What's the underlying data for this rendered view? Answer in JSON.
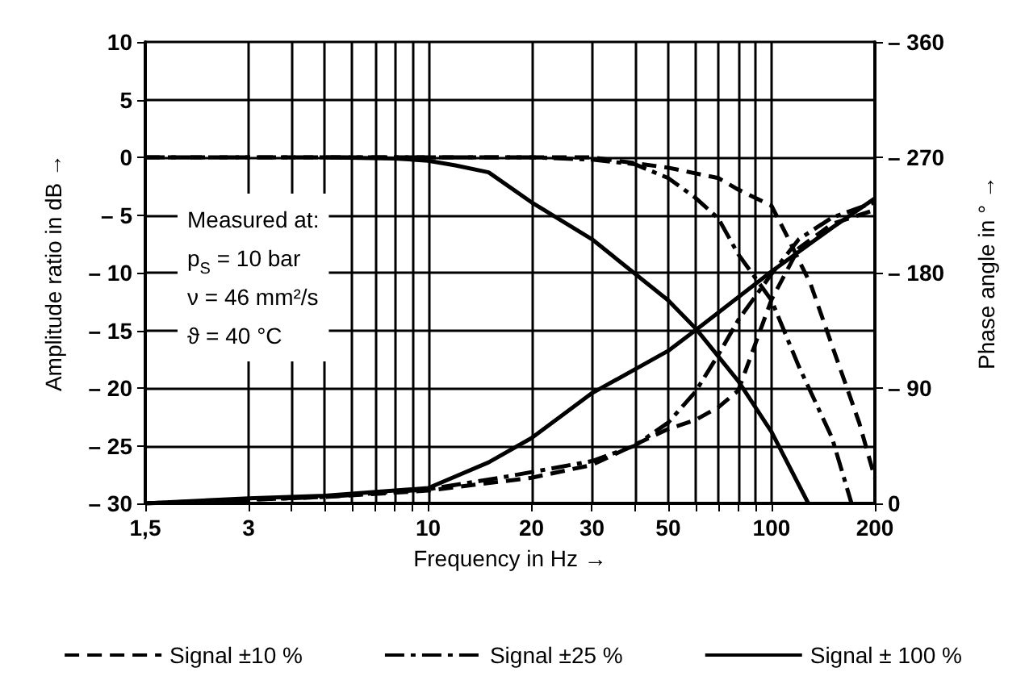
{
  "chart_data": {
    "type": "line",
    "xlabel": "Frequency in Hz →",
    "ylabel": "Amplitude ratio in dB →",
    "y2label": "Phase angle in ° →",
    "log": "x",
    "xlim": [
      1.5,
      200
    ],
    "xticks": [
      {
        "value": 1.5,
        "label": "1,5"
      },
      3,
      {
        "value": 4,
        "label": null
      },
      {
        "value": 5,
        "label": null
      },
      {
        "value": 6,
        "label": null
      },
      {
        "value": 7,
        "label": null
      },
      {
        "value": 8,
        "label": null
      },
      {
        "value": 9,
        "label": null
      },
      10,
      20,
      30,
      {
        "value": 40,
        "label": null
      },
      50,
      {
        "value": 60,
        "label": null
      },
      {
        "value": 70,
        "label": null
      },
      {
        "value": 80,
        "label": null
      },
      {
        "value": 90,
        "label": null
      },
      100,
      200
    ],
    "ylim": [
      -30,
      10
    ],
    "yticks": [
      {
        "value": -30,
        "label": "– 30"
      },
      {
        "value": -25,
        "label": "– 25"
      },
      {
        "value": -20,
        "label": "– 20"
      },
      {
        "value": -15,
        "label": "– 15"
      },
      {
        "value": -10,
        "label": "– 10"
      },
      {
        "value": -5,
        "label": "– 5"
      },
      0,
      5,
      10
    ],
    "y2lim": [
      0,
      -360
    ],
    "y2ticks": [
      0,
      {
        "value": -90,
        "label": "– 90"
      },
      {
        "value": -180,
        "label": "– 180"
      },
      {
        "value": -270,
        "label": "– 270"
      },
      {
        "value": -360,
        "label": "– 360"
      }
    ],
    "grid": true,
    "legend": "bottom",
    "marker": "none",
    "annotations": [
      "Measured at:",
      "p$_{S}$ = 10 bar",
      "ν = 46 mm²/s",
      "ϑ = 40 °C"
    ],
    "series": [
      {
        "name": "Signal ±10 %",
        "color": "#000000",
        "line_style": "dashed",
        "x": [
          1.5,
          10,
          20,
          30,
          50,
          70,
          80,
          100,
          110,
          130,
          150,
          180,
          200
        ],
        "values": [
          0,
          0,
          0,
          0,
          -0.9,
          -1.8,
          -2.8,
          -4.2,
          -6.6,
          -11,
          -16.3,
          -23,
          -27.8
        ]
      },
      {
        "name": "Signal ±25 %",
        "color": "#000000",
        "line_style": "dashdot",
        "x": [
          1.5,
          10,
          20,
          30,
          40,
          50,
          60,
          70,
          80,
          100,
          120,
          150,
          171
        ],
        "values": [
          0,
          0,
          0,
          -0.2,
          -0.6,
          -1.8,
          -3.5,
          -5.3,
          -8.4,
          -12.4,
          -18.1,
          -24.3,
          -30
        ]
      },
      {
        "name": "Signal ± 100 %",
        "color": "#000000",
        "line_style": "solid",
        "x": [
          5,
          8,
          10,
          12,
          15,
          20,
          30,
          50,
          60,
          80,
          100,
          128
        ],
        "values": [
          0,
          -0.1,
          -0.3,
          -0.7,
          -1.3,
          -3.9,
          -7.1,
          -12.4,
          -14.8,
          -19.4,
          -23.8,
          -30
        ]
      },
      {
        "color": "#000000",
        "line_style": "dashed",
        "axis": "y2",
        "x": [
          1.5,
          5,
          10,
          20,
          30,
          50,
          60,
          70,
          80,
          100,
          120,
          150,
          200
        ],
        "values": [
          0,
          -5,
          -10,
          -20,
          -30,
          -58,
          -65,
          -75,
          -88,
          -159,
          -199,
          -218,
          -229
        ]
      },
      {
        "color": "#000000",
        "line_style": "dashdot",
        "axis": "y2",
        "x": [
          1.5,
          5,
          10,
          17,
          30,
          40,
          50,
          60,
          70,
          80,
          100,
          120,
          150,
          200
        ],
        "values": [
          0,
          -5,
          -11,
          -21,
          -33,
          -45,
          -63,
          -87,
          -116,
          -143,
          -179,
          -206,
          -223,
          -235
        ]
      },
      {
        "color": "#000000",
        "line_style": "solid",
        "axis": "y2",
        "x": [
          1.5,
          3,
          5,
          8,
          10,
          15,
          20,
          30,
          50,
          60,
          100,
          150,
          200
        ],
        "values": [
          0,
          -4,
          -6,
          -10,
          -12,
          -32,
          -51,
          -86,
          -119,
          -135,
          -181,
          -215,
          -238
        ]
      }
    ]
  }
}
